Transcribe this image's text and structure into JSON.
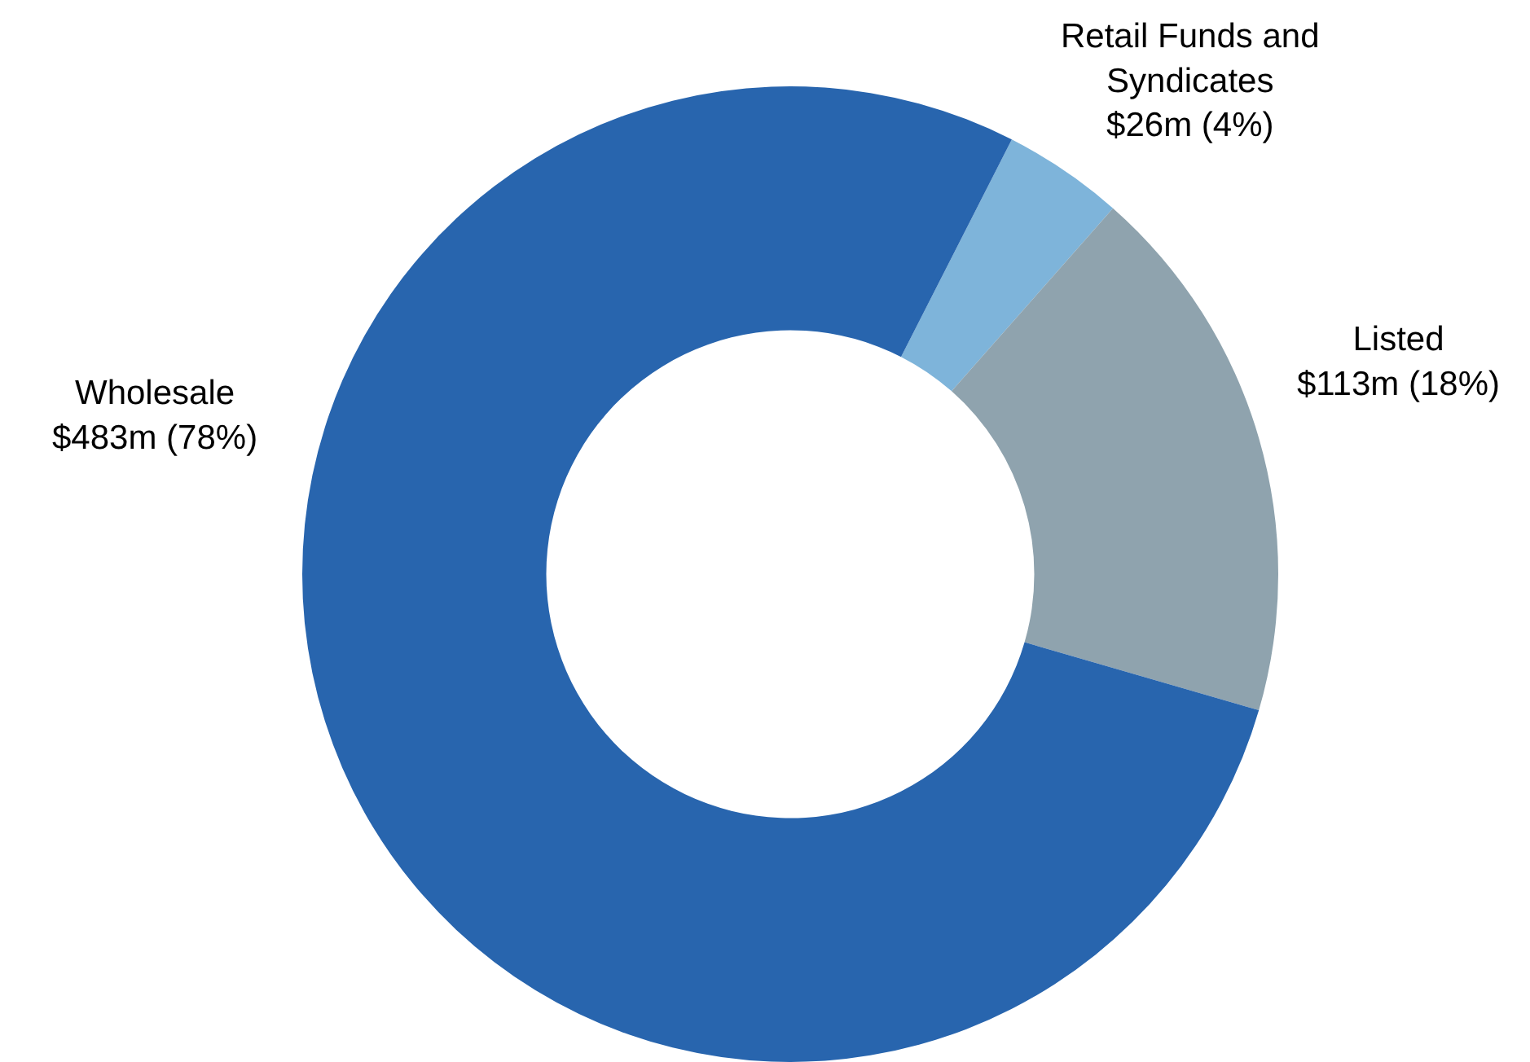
{
  "chart_data": {
    "type": "donut",
    "categories": [
      "Retail Funds and Syndicates",
      "Listed",
      "Wholesale"
    ],
    "values": [
      4,
      18,
      78
    ],
    "value_labels": [
      "$26m (4%)",
      "$113m (18%)",
      "$483m (78%)"
    ],
    "colors": [
      "#7eb4da",
      "#8fa3ae",
      "#2865ae"
    ],
    "legend": false
  }
}
